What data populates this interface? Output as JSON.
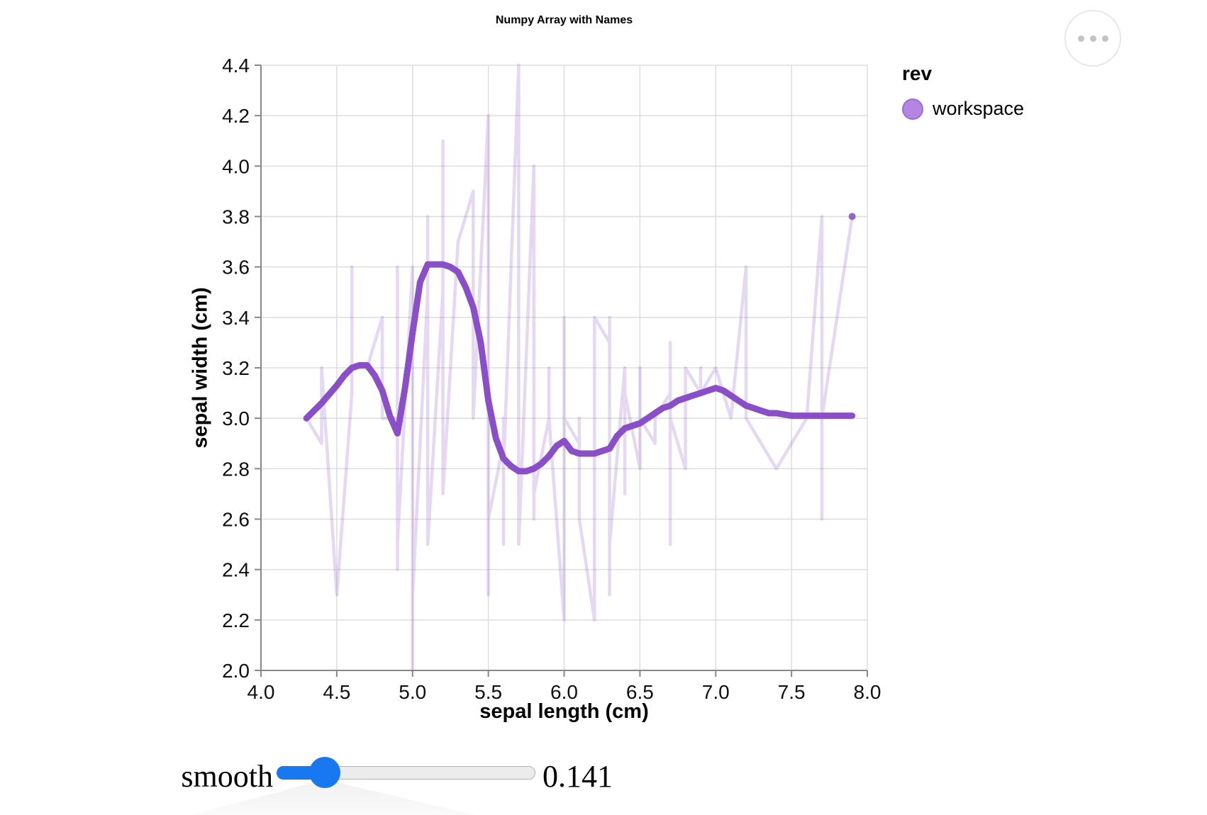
{
  "header": {
    "title": "Numpy Array with Names"
  },
  "legend": {
    "title": "rev",
    "items": [
      {
        "label": "workspace",
        "swatch_fill": "#b286e2",
        "swatch_stroke": "#9c6cd4"
      }
    ]
  },
  "slider": {
    "label": "smooth",
    "value": "0.141"
  },
  "colors": {
    "accent_purple": "#8a4fc8",
    "slider_blue": "#1878f0",
    "grid": "#dddddd",
    "axis_domain": "#888888",
    "tick_label": "#0f0f0f",
    "end_dot": "#9065cf",
    "menu_dot": "#c3c3c3"
  },
  "chart_data": {
    "type": "line",
    "title": "Numpy Array with Names",
    "xlabel": "sepal length (cm)",
    "ylabel": "sepal width (cm)",
    "xlim": [
      4.0,
      8.0
    ],
    "ylim": [
      2.0,
      4.4
    ],
    "x_ticks": [
      4.0,
      4.5,
      5.0,
      5.5,
      6.0,
      6.5,
      7.0,
      7.5,
      8.0
    ],
    "y_ticks": [
      2.0,
      2.2,
      2.4,
      2.6,
      2.8,
      3.0,
      3.2,
      3.4,
      3.6,
      3.8,
      4.0,
      4.2,
      4.4
    ],
    "grid": true,
    "legend_position": "right",
    "series": [
      {
        "name": "workspace-raw-iris-sorted-by-sepal-length",
        "color": "#8a4fc8",
        "opacity": 0.22,
        "stroke_width": 4.5,
        "points": [
          [
            4.3,
            3.0
          ],
          [
            4.4,
            2.9
          ],
          [
            4.4,
            3.0
          ],
          [
            4.4,
            3.2
          ],
          [
            4.5,
            2.3
          ],
          [
            4.6,
            3.1
          ],
          [
            4.6,
            3.4
          ],
          [
            4.6,
            3.6
          ],
          [
            4.6,
            3.2
          ],
          [
            4.7,
            3.2
          ],
          [
            4.7,
            3.2
          ],
          [
            4.8,
            3.4
          ],
          [
            4.8,
            3.0
          ],
          [
            4.8,
            3.4
          ],
          [
            4.8,
            3.1
          ],
          [
            4.8,
            3.0
          ],
          [
            4.9,
            3.0
          ],
          [
            4.9,
            3.1
          ],
          [
            4.9,
            3.1
          ],
          [
            4.9,
            3.6
          ],
          [
            4.9,
            2.4
          ],
          [
            4.9,
            2.5
          ],
          [
            5.0,
            3.6
          ],
          [
            5.0,
            3.4
          ],
          [
            5.0,
            3.0
          ],
          [
            5.0,
            3.4
          ],
          [
            5.0,
            3.2
          ],
          [
            5.0,
            3.5
          ],
          [
            5.0,
            3.5
          ],
          [
            5.0,
            3.3
          ],
          [
            5.0,
            2.0
          ],
          [
            5.0,
            2.3
          ],
          [
            5.1,
            3.5
          ],
          [
            5.1,
            3.5
          ],
          [
            5.1,
            3.8
          ],
          [
            5.1,
            3.7
          ],
          [
            5.1,
            3.3
          ],
          [
            5.1,
            3.4
          ],
          [
            5.1,
            3.8
          ],
          [
            5.1,
            3.8
          ],
          [
            5.1,
            2.5
          ],
          [
            5.2,
            3.5
          ],
          [
            5.2,
            3.4
          ],
          [
            5.2,
            4.1
          ],
          [
            5.2,
            2.7
          ],
          [
            5.3,
            3.7
          ],
          [
            5.4,
            3.9
          ],
          [
            5.4,
            3.7
          ],
          [
            5.4,
            3.9
          ],
          [
            5.4,
            3.4
          ],
          [
            5.4,
            3.4
          ],
          [
            5.4,
            3.0
          ],
          [
            5.5,
            4.2
          ],
          [
            5.5,
            3.5
          ],
          [
            5.5,
            2.3
          ],
          [
            5.5,
            2.4
          ],
          [
            5.5,
            2.4
          ],
          [
            5.5,
            2.5
          ],
          [
            5.5,
            2.6
          ],
          [
            5.6,
            2.9
          ],
          [
            5.6,
            3.0
          ],
          [
            5.6,
            2.5
          ],
          [
            5.6,
            3.0
          ],
          [
            5.6,
            2.7
          ],
          [
            5.6,
            2.8
          ],
          [
            5.7,
            4.4
          ],
          [
            5.7,
            3.8
          ],
          [
            5.7,
            2.8
          ],
          [
            5.7,
            2.6
          ],
          [
            5.7,
            3.0
          ],
          [
            5.7,
            2.9
          ],
          [
            5.7,
            2.8
          ],
          [
            5.7,
            2.5
          ],
          [
            5.8,
            4.0
          ],
          [
            5.8,
            2.7
          ],
          [
            5.8,
            2.7
          ],
          [
            5.8,
            2.6
          ],
          [
            5.8,
            2.7
          ],
          [
            5.8,
            2.8
          ],
          [
            5.8,
            2.7
          ],
          [
            5.9,
            3.0
          ],
          [
            5.9,
            3.2
          ],
          [
            5.9,
            3.0
          ],
          [
            6.0,
            2.2
          ],
          [
            6.0,
            2.9
          ],
          [
            6.0,
            2.7
          ],
          [
            6.0,
            3.4
          ],
          [
            6.0,
            2.2
          ],
          [
            6.0,
            3.0
          ],
          [
            6.1,
            2.9
          ],
          [
            6.1,
            2.8
          ],
          [
            6.1,
            2.8
          ],
          [
            6.1,
            3.0
          ],
          [
            6.1,
            3.0
          ],
          [
            6.1,
            2.6
          ],
          [
            6.2,
            2.2
          ],
          [
            6.2,
            2.9
          ],
          [
            6.2,
            2.8
          ],
          [
            6.2,
            3.4
          ],
          [
            6.3,
            3.3
          ],
          [
            6.3,
            2.5
          ],
          [
            6.3,
            2.3
          ],
          [
            6.3,
            3.3
          ],
          [
            6.3,
            2.9
          ],
          [
            6.3,
            2.7
          ],
          [
            6.3,
            2.8
          ],
          [
            6.3,
            3.4
          ],
          [
            6.3,
            2.5
          ],
          [
            6.4,
            3.2
          ],
          [
            6.4,
            2.9
          ],
          [
            6.4,
            2.7
          ],
          [
            6.4,
            3.2
          ],
          [
            6.4,
            2.8
          ],
          [
            6.4,
            2.8
          ],
          [
            6.4,
            3.1
          ],
          [
            6.5,
            2.8
          ],
          [
            6.5,
            3.0
          ],
          [
            6.5,
            3.2
          ],
          [
            6.5,
            3.0
          ],
          [
            6.5,
            3.0
          ],
          [
            6.6,
            2.9
          ],
          [
            6.6,
            3.0
          ],
          [
            6.7,
            3.1
          ],
          [
            6.7,
            3.0
          ],
          [
            6.7,
            3.1
          ],
          [
            6.7,
            2.5
          ],
          [
            6.7,
            3.3
          ],
          [
            6.7,
            3.1
          ],
          [
            6.7,
            3.3
          ],
          [
            6.7,
            3.0
          ],
          [
            6.8,
            2.8
          ],
          [
            6.8,
            3.0
          ],
          [
            6.8,
            3.2
          ],
          [
            6.9,
            3.1
          ],
          [
            6.9,
            3.2
          ],
          [
            6.9,
            3.1
          ],
          [
            6.9,
            3.1
          ],
          [
            7.0,
            3.2
          ],
          [
            7.1,
            3.0
          ],
          [
            7.2,
            3.6
          ],
          [
            7.2,
            3.2
          ],
          [
            7.2,
            3.0
          ],
          [
            7.3,
            2.9
          ],
          [
            7.4,
            2.8
          ],
          [
            7.6,
            3.0
          ],
          [
            7.7,
            3.8
          ],
          [
            7.7,
            2.6
          ],
          [
            7.7,
            2.8
          ],
          [
            7.7,
            3.0
          ],
          [
            7.9,
            3.8
          ]
        ]
      },
      {
        "name": "workspace-loess-smooth",
        "color": "#8a4fc8",
        "opacity": 1,
        "stroke_width": 9,
        "points": [
          [
            4.3,
            3.0
          ],
          [
            4.4,
            3.06
          ],
          [
            4.5,
            3.13
          ],
          [
            4.55,
            3.17
          ],
          [
            4.6,
            3.2
          ],
          [
            4.65,
            3.21
          ],
          [
            4.7,
            3.21
          ],
          [
            4.75,
            3.17
          ],
          [
            4.8,
            3.11
          ],
          [
            4.85,
            3.01
          ],
          [
            4.9,
            2.94
          ],
          [
            4.95,
            3.12
          ],
          [
            5.0,
            3.34
          ],
          [
            5.05,
            3.54
          ],
          [
            5.1,
            3.61
          ],
          [
            5.2,
            3.61
          ],
          [
            5.25,
            3.6
          ],
          [
            5.3,
            3.58
          ],
          [
            5.35,
            3.52
          ],
          [
            5.4,
            3.44
          ],
          [
            5.45,
            3.3
          ],
          [
            5.5,
            3.07
          ],
          [
            5.55,
            2.92
          ],
          [
            5.6,
            2.84
          ],
          [
            5.65,
            2.81
          ],
          [
            5.7,
            2.79
          ],
          [
            5.75,
            2.79
          ],
          [
            5.8,
            2.8
          ],
          [
            5.85,
            2.82
          ],
          [
            5.9,
            2.85
          ],
          [
            5.95,
            2.89
          ],
          [
            6.0,
            2.91
          ],
          [
            6.05,
            2.87
          ],
          [
            6.1,
            2.86
          ],
          [
            6.15,
            2.86
          ],
          [
            6.2,
            2.86
          ],
          [
            6.25,
            2.87
          ],
          [
            6.3,
            2.88
          ],
          [
            6.35,
            2.93
          ],
          [
            6.4,
            2.96
          ],
          [
            6.45,
            2.97
          ],
          [
            6.5,
            2.98
          ],
          [
            6.55,
            3.0
          ],
          [
            6.6,
            3.02
          ],
          [
            6.65,
            3.04
          ],
          [
            6.7,
            3.05
          ],
          [
            6.75,
            3.07
          ],
          [
            6.8,
            3.08
          ],
          [
            6.85,
            3.09
          ],
          [
            6.9,
            3.1
          ],
          [
            6.95,
            3.11
          ],
          [
            7.0,
            3.12
          ],
          [
            7.05,
            3.11
          ],
          [
            7.1,
            3.09
          ],
          [
            7.15,
            3.07
          ],
          [
            7.2,
            3.05
          ],
          [
            7.25,
            3.04
          ],
          [
            7.3,
            3.03
          ],
          [
            7.35,
            3.02
          ],
          [
            7.4,
            3.02
          ],
          [
            7.5,
            3.01
          ],
          [
            7.6,
            3.01
          ],
          [
            7.7,
            3.01
          ],
          [
            7.8,
            3.01
          ],
          [
            7.9,
            3.01
          ]
        ]
      }
    ],
    "end_point": {
      "x": 7.9,
      "y": 3.8,
      "color": "#9065cf",
      "radius": 5
    }
  }
}
